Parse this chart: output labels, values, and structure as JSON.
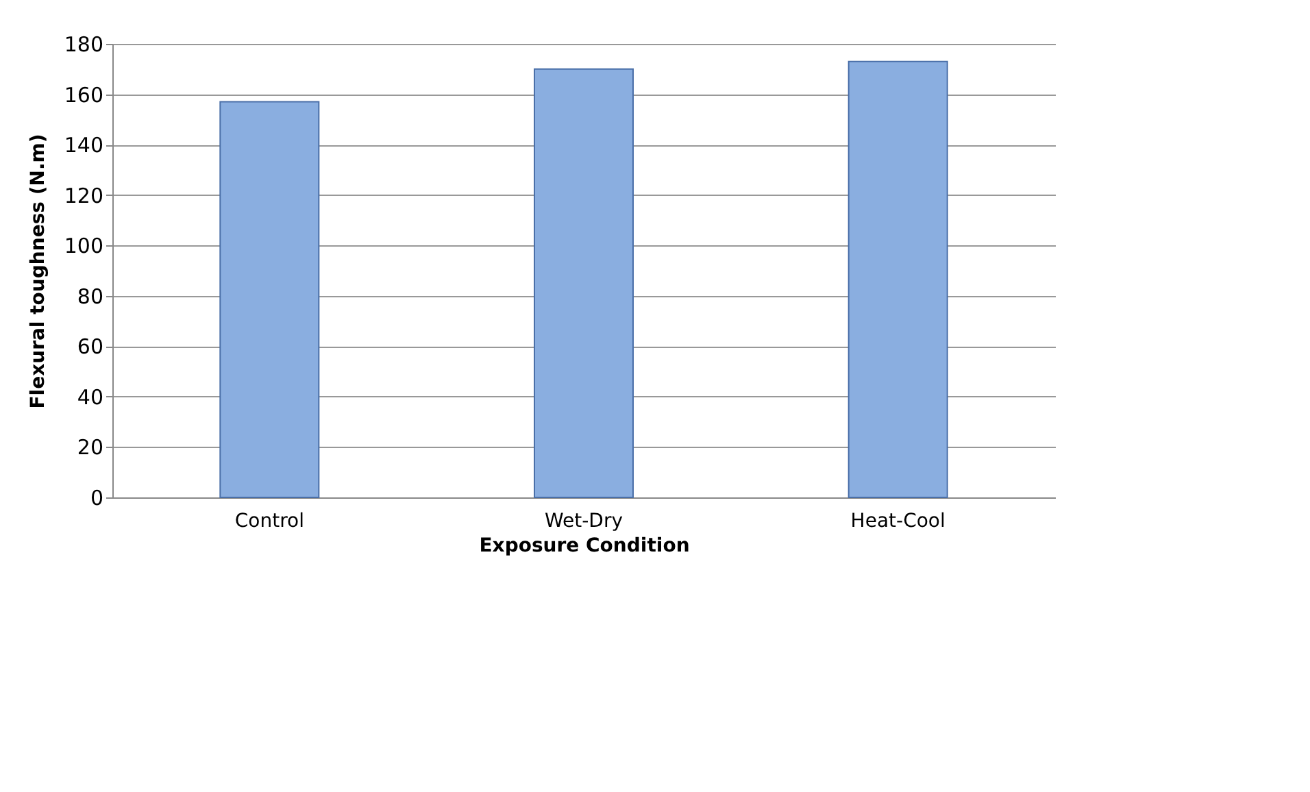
{
  "chart_data": {
    "type": "bar",
    "xlabel": "Exposure Condition",
    "ylabel": "Flexural toughness (N.m)",
    "categories": [
      "Control",
      "Wet-Dry",
      "Heat-Cool"
    ],
    "values": [
      157,
      170,
      173
    ],
    "color": "#8aaee0",
    "ylim": [
      0,
      180
    ],
    "yticks": [
      0,
      20,
      40,
      60,
      80,
      100,
      120,
      140,
      160,
      180
    ],
    "grid": "y"
  }
}
